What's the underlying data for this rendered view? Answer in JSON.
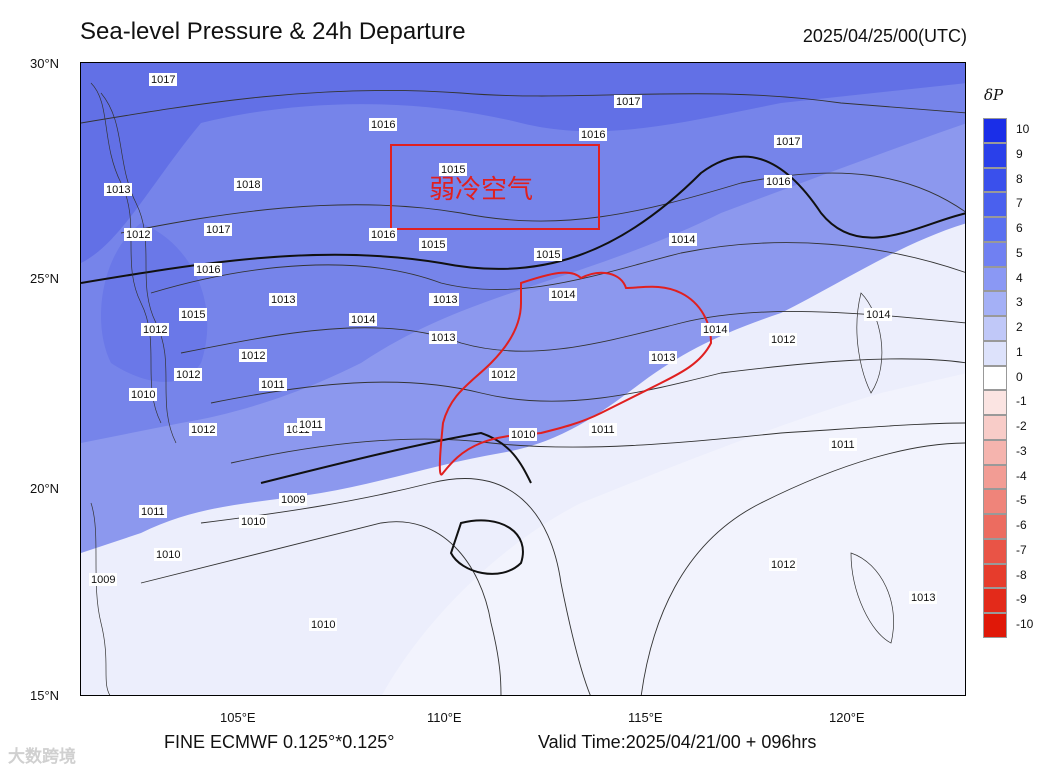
{
  "header": {
    "title": "Sea-level Pressure & 24h Departure",
    "timestamp": "2025/04/25/00(UTC)"
  },
  "footer": {
    "model": "FINE ECMWF 0.125°*0.125°",
    "valid_time": "Valid Time:2025/04/21/00 + 096hrs"
  },
  "watermark": "大数跨境",
  "annotation": {
    "text": "弱冷空气",
    "color": "#e02020"
  },
  "axes": {
    "lat_labels": [
      "30°N",
      "25°N",
      "20°N",
      "15°N"
    ],
    "lon_labels": [
      "105°E",
      "110°E",
      "115°E",
      "120°E"
    ]
  },
  "legend": {
    "title": "δP",
    "labels": [
      "10",
      "9",
      "8",
      "7",
      "6",
      "5",
      "4",
      "3",
      "2",
      "1",
      "0",
      "-1",
      "-2",
      "-3",
      "-4",
      "-5",
      "-6",
      "-7",
      "-8",
      "-9",
      "-10"
    ],
    "colors": [
      "#1a2ee8",
      "#2a40ea",
      "#3a50ec",
      "#4a60ee",
      "#5a70f0",
      "#7080f2",
      "#8a98f4",
      "#a4b0f6",
      "#c0c8f8",
      "#dde2fb",
      "#ffffff",
      "#fbe4e2",
      "#f8ccc8",
      "#f5b4ae",
      "#f29c94",
      "#ef847a",
      "#ec6c60",
      "#e95446",
      "#e63c2c",
      "#e32a1a",
      "#e01808"
    ]
  },
  "isobars": [
    "1017",
    "1017",
    "1016",
    "1017",
    "1018",
    "1013",
    "1016",
    "1017",
    "1012",
    "1016",
    "1016",
    "1015",
    "1015",
    "1016",
    "1015",
    "1014",
    "1016",
    "1014",
    "1013",
    "1015",
    "1014",
    "1013",
    "1012",
    "1012",
    "1013",
    "1014",
    "1012",
    "1011",
    "1012",
    "1013",
    "1012",
    "1010",
    "1012",
    "1011",
    "1011",
    "1010",
    "1009",
    "1010",
    "1011",
    "1010",
    "1009",
    "1011",
    "1012",
    "1011",
    "1010",
    "1014",
    "1013"
  ]
}
